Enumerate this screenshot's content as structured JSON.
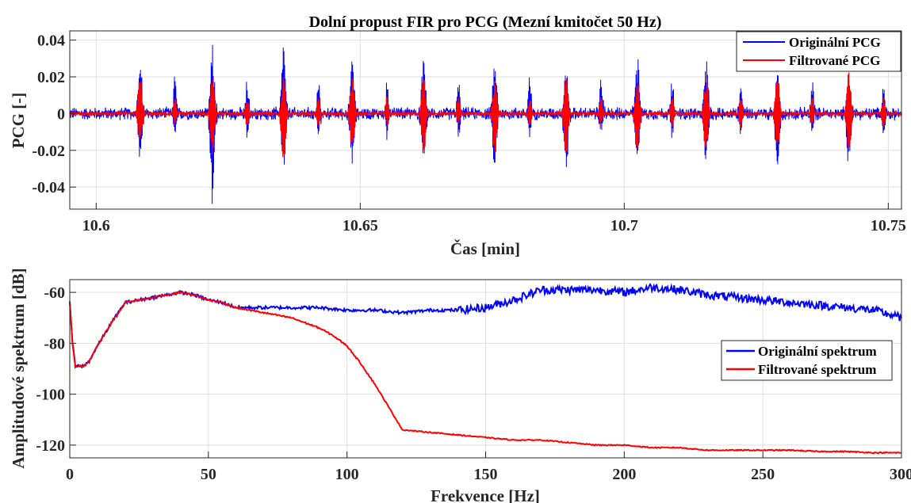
{
  "chart_data": [
    {
      "type": "line",
      "title": "Dolní propust FIR pro PCG (Mezní kmitočet 50 Hz)",
      "xlabel": "Čas [min]",
      "ylabel": "PCG [-]",
      "xlim": [
        10.595,
        10.7525
      ],
      "ylim": [
        -0.052,
        0.045
      ],
      "x_ticks": [
        10.6,
        10.65,
        10.7,
        10.75
      ],
      "x_tick_labels": [
        "10.6",
        "10.65",
        "10.7",
        "10.75"
      ],
      "y_ticks": [
        -0.04,
        -0.02,
        0,
        0.02,
        0.04
      ],
      "y_tick_labels": [
        "-0.04",
        "-0.02",
        "0",
        "0.02",
        "0.04"
      ],
      "grid": true,
      "legend_position": "top-right",
      "series": [
        {
          "name": "Originální PCG",
          "color": "#0000ff",
          "beat_times": [
            10.6083,
            10.622,
            10.6355,
            10.6485,
            10.662,
            10.6755,
            10.689,
            10.7025,
            10.7155,
            10.729,
            10.7425
          ],
          "noise_amplitude": 0.004,
          "s1_peaks": [
            0.028,
            0.036,
            0.037,
            0.03,
            0.03,
            0.03,
            0.03,
            0.03,
            0.029,
            0.025,
            0.024
          ],
          "s1_troughs": [
            -0.023,
            -0.049,
            -0.031,
            -0.033,
            -0.03,
            -0.03,
            -0.03,
            -0.029,
            -0.028,
            -0.03,
            -0.031
          ],
          "s2_peaks": [
            0.02,
            0.02,
            0.019,
            0.018,
            0.02,
            0.02,
            0.019,
            0.018,
            0.019,
            0.018,
            0.017
          ],
          "s2_troughs": [
            -0.012,
            -0.013,
            -0.013,
            -0.012,
            -0.012,
            -0.012,
            -0.012,
            -0.012,
            -0.011,
            -0.012,
            -0.011
          ]
        },
        {
          "name": "Filtrované PCG",
          "color": "#ff0000",
          "beat_times": [
            10.6083,
            10.622,
            10.6355,
            10.6485,
            10.662,
            10.6755,
            10.689,
            10.7025,
            10.7155,
            10.729,
            10.7425
          ],
          "noise_amplitude": 0.0012,
          "s1_peaks": [
            0.022,
            0.022,
            0.021,
            0.02,
            0.022,
            0.02,
            0.021,
            0.02,
            0.02,
            0.023,
            0.023
          ],
          "s1_troughs": [
            -0.018,
            -0.024,
            -0.035,
            -0.024,
            -0.024,
            -0.024,
            -0.024,
            -0.024,
            -0.024,
            -0.024,
            -0.024
          ],
          "s2_peaks": [
            0.01,
            0.011,
            0.011,
            0.01,
            0.01,
            0.01,
            0.01,
            0.01,
            0.01,
            0.009,
            0.009
          ],
          "s2_troughs": [
            -0.008,
            -0.008,
            -0.008,
            -0.008,
            -0.008,
            -0.008,
            -0.008,
            -0.008,
            -0.008,
            -0.008,
            -0.008
          ]
        }
      ]
    },
    {
      "type": "line",
      "title": "",
      "xlabel": "Frekvence [Hz]",
      "ylabel": "Amplitudové spektrum [dB]",
      "xlim": [
        0,
        300
      ],
      "ylim": [
        -125,
        -55
      ],
      "x_ticks": [
        0,
        50,
        100,
        150,
        200,
        250,
        300
      ],
      "x_tick_labels": [
        "0",
        "50",
        "100",
        "150",
        "200",
        "250",
        "300"
      ],
      "y_ticks": [
        -120,
        -100,
        -80,
        -60
      ],
      "y_tick_labels": [
        "-120",
        "-100",
        "-80",
        "-60"
      ],
      "grid": true,
      "legend_position": "right",
      "series": [
        {
          "name": "Originální spektrum",
          "color": "#0000ff",
          "x": [
            0,
            1,
            2,
            3,
            5,
            7,
            10,
            15,
            20,
            25,
            30,
            35,
            40,
            45,
            50,
            55,
            60,
            70,
            80,
            90,
            100,
            110,
            120,
            130,
            140,
            150,
            160,
            170,
            180,
            190,
            200,
            210,
            220,
            230,
            240,
            250,
            260,
            270,
            280,
            290,
            300
          ],
          "y": [
            -64,
            -80,
            -89,
            -89,
            -89,
            -87,
            -81,
            -72,
            -64,
            -63,
            -62,
            -61,
            -60,
            -61,
            -63,
            -64,
            -66,
            -66,
            -66,
            -66,
            -67,
            -67,
            -68,
            -67,
            -67,
            -66,
            -63,
            -59,
            -59,
            -59,
            -60,
            -58,
            -59,
            -61,
            -62,
            -63,
            -64,
            -65,
            -66,
            -67,
            -70
          ]
        },
        {
          "name": "Filtrované spektrum",
          "color": "#ff0000",
          "x": [
            0,
            1,
            2,
            3,
            5,
            7,
            10,
            15,
            20,
            25,
            30,
            35,
            40,
            45,
            50,
            55,
            60,
            65,
            70,
            75,
            80,
            85,
            90,
            95,
            100,
            105,
            110,
            115,
            120,
            130,
            140,
            150,
            160,
            170,
            180,
            190,
            200,
            210,
            220,
            230,
            240,
            250,
            260,
            270,
            280,
            290,
            300
          ],
          "y": [
            -64,
            -80,
            -89,
            -89,
            -89,
            -87,
            -81,
            -72,
            -64,
            -63,
            -62,
            -61,
            -60,
            -61,
            -63,
            -64,
            -66,
            -67,
            -68,
            -69,
            -70,
            -72,
            -74,
            -77,
            -81,
            -88,
            -96,
            -105,
            -114,
            -115,
            -116,
            -117,
            -118,
            -118,
            -119,
            -120,
            -120,
            -121,
            -121,
            -122,
            -122,
            -122,
            -122,
            -122.5,
            -122.5,
            -123,
            -123
          ]
        }
      ]
    }
  ]
}
